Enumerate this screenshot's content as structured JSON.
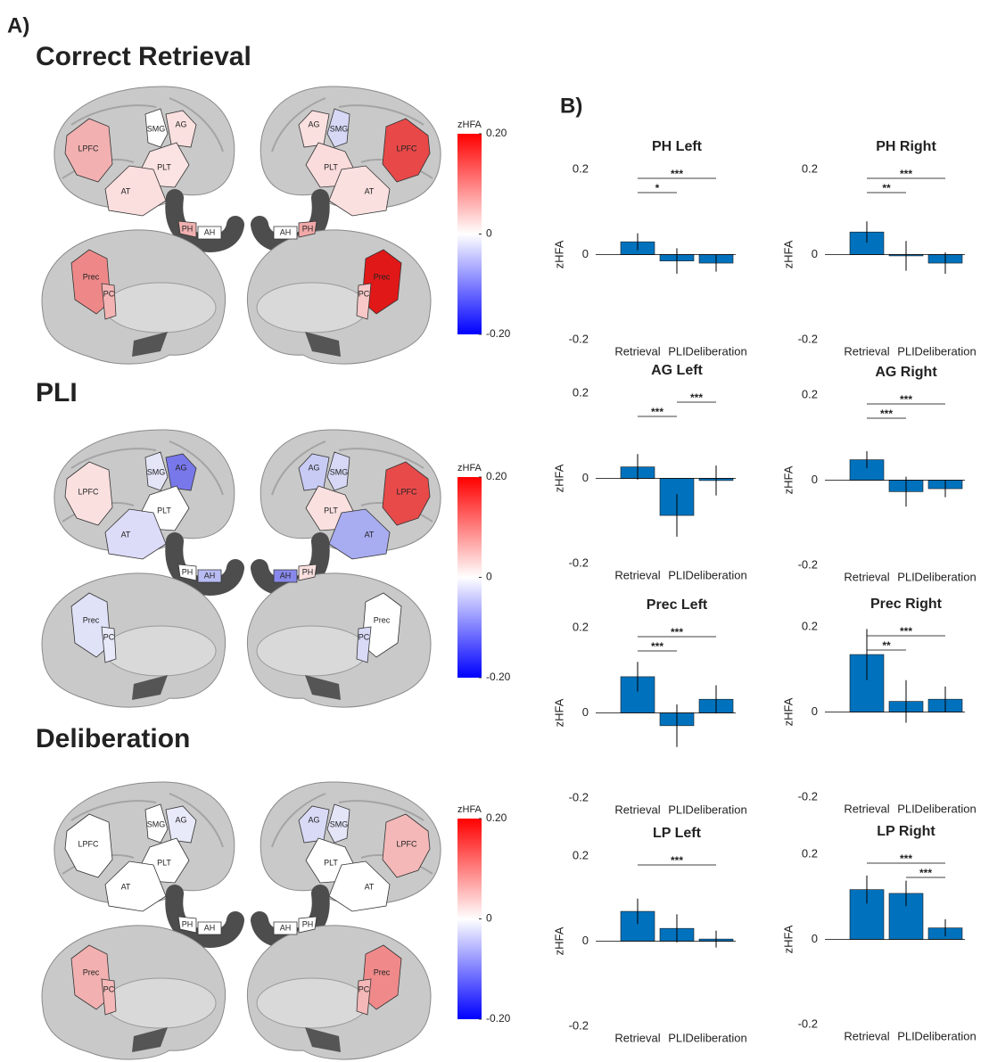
{
  "panel_labels": [
    "A)",
    "B)"
  ],
  "brain_maps": [
    {
      "title": "Correct Retrieval",
      "colorbar": {
        "label": "zHFA",
        "lim": [
          -0.2,
          0.2
        ],
        "ticks": [
          {
            "value": 0.2,
            "label": "0.20"
          },
          0,
          {
            "value": -0.2,
            "label": "-0.20"
          }
        ],
        "colors": [
          "#0000ff",
          "#ffffff",
          "#ff0000"
        ]
      },
      "lateral_left": [
        {
          "label": "LPFC",
          "color": "#f2b0b0"
        },
        {
          "label": "SMG",
          "color": "#ffffff"
        },
        {
          "label": "AG",
          "color": "#fbe0e0"
        },
        {
          "label": "PLT",
          "color": "#fbe3e3"
        },
        {
          "label": "AT",
          "color": "#fbdede"
        }
      ],
      "hippocampus_left": [
        {
          "label": "PH",
          "color": "#f0b0b0"
        },
        {
          "label": "AH",
          "color": "#ffffff"
        }
      ],
      "lateral_right": [
        {
          "label": "LPFC",
          "color": "#e84848"
        },
        {
          "label": "SMG",
          "color": "#d6d8f5"
        },
        {
          "label": "AG",
          "color": "#fbe0e0"
        },
        {
          "label": "PLT",
          "color": "#fbdcdc"
        },
        {
          "label": "AT",
          "color": "#fbe0e0"
        }
      ],
      "hippocampus_right": [
        {
          "label": "PH",
          "color": "#f2a8a8"
        },
        {
          "label": "AH",
          "color": "#ffffff"
        }
      ],
      "medial_left": [
        {
          "label": "Prec",
          "color": "#ee8888"
        },
        {
          "label": "PC",
          "color": "#f4b4b4"
        }
      ],
      "medial_right": [
        {
          "label": "Prec",
          "color": "#e01818"
        },
        {
          "label": "PC",
          "color": "#f8c8c8"
        }
      ]
    },
    {
      "title": "PLI",
      "colorbar": {
        "label": "zHFA",
        "lim": [
          -0.2,
          0.2
        ],
        "ticks": [
          {
            "value": 0.2,
            "label": "0.20"
          },
          0,
          {
            "value": -0.2,
            "label": "-0.20"
          }
        ],
        "colors": [
          "#0000ff",
          "#ffffff",
          "#ff0000"
        ]
      },
      "lateral_left": [
        {
          "label": "LPFC",
          "color": "#fbe0e0"
        },
        {
          "label": "SMG",
          "color": "#e4e6f8"
        },
        {
          "label": "AG",
          "color": "#7878ea"
        },
        {
          "label": "PLT",
          "color": "#ffffff"
        },
        {
          "label": "AT",
          "color": "#dcdcf8"
        }
      ],
      "hippocampus_left": [
        {
          "label": "PH",
          "color": "#ffffff"
        },
        {
          "label": "AH",
          "color": "#b8bcf2"
        }
      ],
      "lateral_right": [
        {
          "label": "LPFC",
          "color": "#e84a4a"
        },
        {
          "label": "SMG",
          "color": "#d6d8f5"
        },
        {
          "label": "AG",
          "color": "#c8cbf4"
        },
        {
          "label": "PLT",
          "color": "#fbe0e0"
        },
        {
          "label": "AT",
          "color": "#a8acf0"
        }
      ],
      "hippocampus_right": [
        {
          "label": "PH",
          "color": "#fbe0e0"
        },
        {
          "label": "AH",
          "color": "#8888ec"
        }
      ],
      "medial_left": [
        {
          "label": "Prec",
          "color": "#e0e2f8"
        },
        {
          "label": "PC",
          "color": "#e8eaf9"
        }
      ],
      "medial_right": [
        {
          "label": "Prec",
          "color": "#ffffff"
        },
        {
          "label": "PC",
          "color": "#d8daf6"
        }
      ]
    },
    {
      "title": "Deliberation",
      "colorbar": {
        "label": "zHFA",
        "lim": [
          -0.2,
          0.2
        ],
        "ticks": [
          {
            "value": 0.2,
            "label": "0.20"
          },
          0,
          {
            "value": -0.2,
            "label": "-0.20"
          }
        ],
        "colors": [
          "#0000ff",
          "#ffffff",
          "#ff0000"
        ]
      },
      "lateral_left": [
        {
          "label": "LPFC",
          "color": "#ffffff"
        },
        {
          "label": "SMG",
          "color": "#ffffff"
        },
        {
          "label": "AG",
          "color": "#e8eaf9"
        },
        {
          "label": "PLT",
          "color": "#ffffff"
        },
        {
          "label": "AT",
          "color": "#ffffff"
        }
      ],
      "hippocampus_left": [
        {
          "label": "PH",
          "color": "#ffffff"
        },
        {
          "label": "AH",
          "color": "#ffffff"
        }
      ],
      "lateral_right": [
        {
          "label": "LPFC",
          "color": "#f4b8b8"
        },
        {
          "label": "SMG",
          "color": "#e4e6f8"
        },
        {
          "label": "AG",
          "color": "#d8daf6"
        },
        {
          "label": "PLT",
          "color": "#ffffff"
        },
        {
          "label": "AT",
          "color": "#ffffff"
        }
      ],
      "hippocampus_right": [
        {
          "label": "PH",
          "color": "#ffffff"
        },
        {
          "label": "AH",
          "color": "#ffffff"
        }
      ],
      "medial_left": [
        {
          "label": "Prec",
          "color": "#f2b0b0"
        },
        {
          "label": "PC",
          "color": "#f4b8b8"
        }
      ],
      "medial_right": [
        {
          "label": "Prec",
          "color": "#f08a8a"
        },
        {
          "label": "PC",
          "color": "#f4b8b8"
        }
      ]
    }
  ],
  "chart_data": [
    {
      "type": "bar",
      "title": "PH Left",
      "ylabel": "zHFA",
      "categories": [
        "Retrieval",
        "PLI",
        "Deliberation"
      ],
      "values": [
        0.03,
        -0.015,
        -0.02
      ],
      "errors": [
        0.02,
        0.03,
        0.02
      ],
      "color": "#0072bd",
      "ylim": [
        -0.2,
        0.2
      ],
      "yticks": [
        0.2,
        0,
        -0.2
      ],
      "significance": [
        {
          "pair": [
            0,
            2
          ],
          "label": "***"
        },
        {
          "pair": [
            0,
            1
          ],
          "label": "*"
        }
      ]
    },
    {
      "type": "bar",
      "title": "PH Right",
      "ylabel": "zHFA",
      "categories": [
        "Retrieval",
        "PLI",
        "Deliberation"
      ],
      "values": [
        0.053,
        -0.003,
        -0.02
      ],
      "errors": [
        0.025,
        0.035,
        0.025
      ],
      "color": "#0072bd",
      "ylim": [
        -0.2,
        0.2
      ],
      "yticks": [
        0.2,
        0,
        -0.2
      ],
      "significance": [
        {
          "pair": [
            0,
            2
          ],
          "label": "***"
        },
        {
          "pair": [
            0,
            1
          ],
          "label": "**"
        }
      ]
    },
    {
      "type": "bar",
      "title": "AG Left",
      "ylabel": "zHFA",
      "categories": [
        "Retrieval",
        "PLI",
        "Deliberation"
      ],
      "values": [
        0.027,
        -0.087,
        -0.005
      ],
      "errors": [
        0.03,
        0.05,
        0.035
      ],
      "color": "#0072bd",
      "ylim": [
        -0.2,
        0.2
      ],
      "yticks": [
        0.2,
        0,
        -0.2
      ],
      "significance": [
        {
          "pair": [
            1,
            2
          ],
          "label": "***"
        },
        {
          "pair": [
            0,
            1
          ],
          "label": "***"
        }
      ]
    },
    {
      "type": "bar",
      "title": "AG Right",
      "ylabel": "zHFA",
      "categories": [
        "Retrieval",
        "PLI",
        "Deliberation"
      ],
      "values": [
        0.048,
        -0.027,
        -0.02
      ],
      "errors": [
        0.02,
        0.035,
        0.02
      ],
      "color": "#0072bd",
      "ylim": [
        -0.2,
        0.2
      ],
      "yticks": [
        0.2,
        0,
        -0.2
      ],
      "significance": [
        {
          "pair": [
            0,
            2
          ],
          "label": "***"
        },
        {
          "pair": [
            0,
            1
          ],
          "label": "***"
        }
      ]
    },
    {
      "type": "bar",
      "title": "Prec Left",
      "ylabel": "zHFA",
      "categories": [
        "Retrieval",
        "PLI",
        "Deliberation"
      ],
      "values": [
        0.085,
        -0.03,
        0.032
      ],
      "errors": [
        0.035,
        0.05,
        0.033
      ],
      "color": "#0072bd",
      "ylim": [
        -0.2,
        0.2
      ],
      "yticks": [
        0.2,
        0,
        -0.2
      ],
      "significance": [
        {
          "pair": [
            0,
            2
          ],
          "label": "***"
        },
        {
          "pair": [
            0,
            1
          ],
          "label": "***"
        }
      ]
    },
    {
      "type": "bar",
      "title": "Prec Right",
      "ylabel": "zHFA",
      "categories": [
        "Retrieval",
        "PLI",
        "Deliberation"
      ],
      "values": [
        0.135,
        0.025,
        0.03
      ],
      "errors": [
        0.06,
        0.05,
        0.03
      ],
      "color": "#0072bd",
      "ylim": [
        -0.2,
        0.2
      ],
      "yticks": [
        0.2,
        0,
        -0.2
      ],
      "significance": [
        {
          "pair": [
            0,
            2
          ],
          "label": "***"
        },
        {
          "pair": [
            0,
            1
          ],
          "label": "**"
        }
      ]
    },
    {
      "type": "bar",
      "title": "LP Left",
      "ylabel": "zHFA",
      "categories": [
        "Retrieval",
        "PLI",
        "Deliberation"
      ],
      "values": [
        0.07,
        0.03,
        0.005
      ],
      "errors": [
        0.03,
        0.033,
        0.02
      ],
      "color": "#0072bd",
      "ylim": [
        -0.2,
        0.2
      ],
      "yticks": [
        0.2,
        0,
        -0.2
      ],
      "significance": [
        {
          "pair": [
            0,
            2
          ],
          "label": "***"
        }
      ]
    },
    {
      "type": "bar",
      "title": "LP Right",
      "ylabel": "zHFA",
      "categories": [
        "Retrieval",
        "PLI",
        "Deliberation"
      ],
      "values": [
        0.117,
        0.108,
        0.027
      ],
      "errors": [
        0.033,
        0.03,
        0.02
      ],
      "color": "#0072bd",
      "ylim": [
        -0.2,
        0.2
      ],
      "yticks": [
        0.2,
        0,
        -0.2
      ],
      "significance": [
        {
          "pair": [
            0,
            2
          ],
          "label": "***"
        },
        {
          "pair": [
            1,
            2
          ],
          "label": "***"
        }
      ]
    }
  ]
}
